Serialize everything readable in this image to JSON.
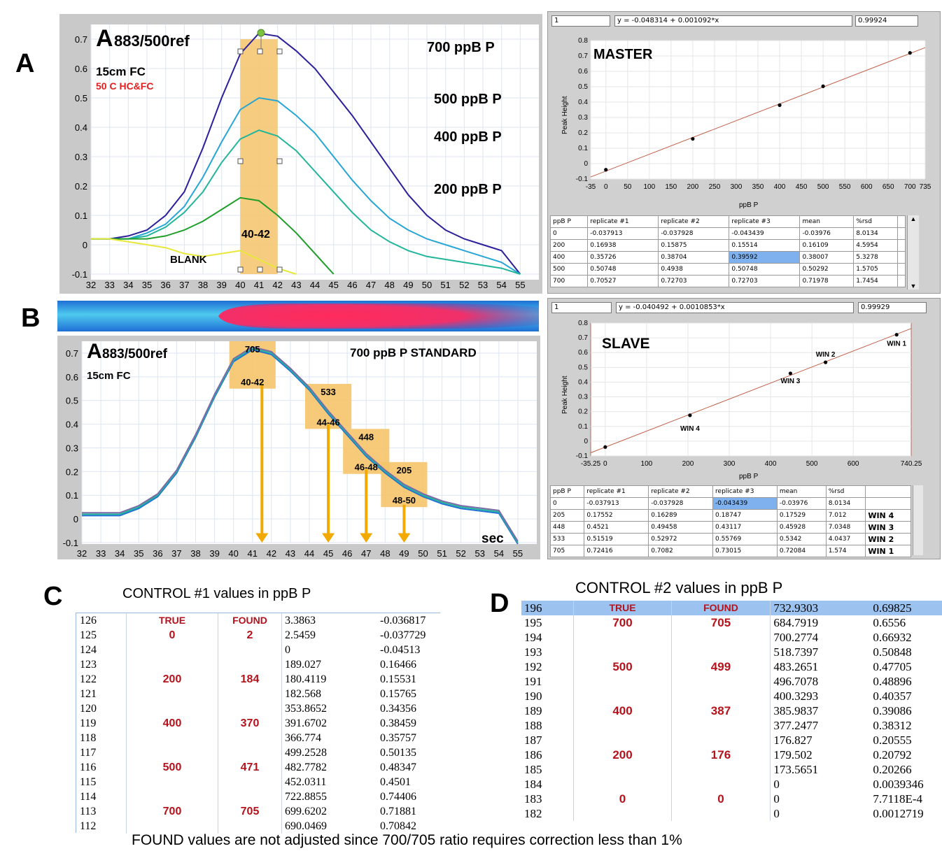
{
  "panels": {
    "a": "A",
    "b": "B",
    "c": "C",
    "d": "D"
  },
  "panelA": {
    "title_main": "A",
    "title_sub": "883/500ref",
    "fc": "15cm  FC",
    "temp": "50 C HC&FC",
    "window_label": "40-42",
    "blank_label": "BLANK",
    "curve_labels": [
      "700 ppB P",
      "500 ppB P",
      "400 ppB P",
      "200 ppB P"
    ],
    "colors": {
      "700": "#2b1f9c",
      "500": "#27a6d6",
      "400": "#22b59a",
      "200": "#1f9e2a",
      "blank": "#e8e83a",
      "window": "#f5c46a"
    }
  },
  "panelB": {
    "title_main": "A",
    "title_sub": "883/500ref",
    "fc": "15cm  FC",
    "standard": "700 ppB P STANDARD",
    "sec": "sec",
    "windows": [
      {
        "value": "705",
        "range": "40-42",
        "win": "WIN1"
      },
      {
        "value": "533",
        "range": "44-46",
        "win": "WIN2"
      },
      {
        "value": "448",
        "range": "46-48",
        "win": "WIN3"
      },
      {
        "value": "205",
        "range": "48-50",
        "win": "WIN4"
      }
    ]
  },
  "master": {
    "index": "1",
    "equation": "y = -0.048314 + 0.001092*x",
    "r": "0.99924",
    "title": "MASTER",
    "xlabel": "ppB P",
    "ylabel": "Peak Height",
    "headers": [
      "ppB P",
      "replicate #1",
      "replicate #2",
      "replicate #3",
      "mean",
      "%rsd"
    ],
    "rows": [
      [
        "0",
        "-0.037913",
        "-0.037928",
        "-0.043439",
        "-0.03976",
        "8.0134"
      ],
      [
        "200",
        "0.16938",
        "0.15875",
        "0.15514",
        "0.16109",
        "4.5954"
      ],
      [
        "400",
        "0.35726",
        "0.38704",
        "0.39592",
        "0.38007",
        "5.3278"
      ],
      [
        "500",
        "0.50748",
        "0.4938",
        "0.50748",
        "0.50292",
        "1.5705"
      ],
      [
        "700",
        "0.70527",
        "0.72703",
        "0.72703",
        "0.71978",
        "1.7454"
      ]
    ]
  },
  "slave": {
    "index": "1",
    "equation": "y = -0.040492 + 0.0010853*x",
    "r": "0.99929",
    "title": "SLAVE",
    "xlabel": "ppB P",
    "ylabel": "Peak Height",
    "point_labels": [
      "WIN 1",
      "WIN 2",
      "WIN 3",
      "WIN 4"
    ],
    "headers": [
      "ppB P",
      "replicate #1",
      "replicate #2",
      "replicate #3",
      "mean",
      "%rsd"
    ],
    "rows": [
      [
        "0",
        "-0.037913",
        "-0.037928",
        "-0.043439",
        "-0.03976",
        "8.0134",
        ""
      ],
      [
        "205",
        "0.17552",
        "0.16289",
        "0.18747",
        "0.17529",
        "7.012",
        "WIN 4"
      ],
      [
        "448",
        "0.4521",
        "0.49458",
        "0.43117",
        "0.45928",
        "7.0348",
        "WIN 3"
      ],
      [
        "533",
        "0.51519",
        "0.52972",
        "0.55769",
        "0.5342",
        "4.0437",
        "WIN 2"
      ],
      [
        "705",
        "0.72416",
        "0.7082",
        "0.73015",
        "0.72084",
        "1.574",
        "WIN 1"
      ]
    ]
  },
  "controlC": {
    "title": "CONTROL #1    values in ppB P",
    "true_label": "TRUE",
    "found_label": "FOUND",
    "rows": [
      [
        "126",
        "",
        "",
        "3.3863",
        "-0.036817"
      ],
      [
        "125",
        "0",
        "2",
        "2.5459",
        "-0.037729"
      ],
      [
        "124",
        "",
        "",
        "0",
        "-0.04513"
      ],
      [
        "123",
        "",
        "",
        "189.027",
        "0.16466"
      ],
      [
        "122",
        "200",
        "184",
        "180.4119",
        "0.15531"
      ],
      [
        "121",
        "",
        "",
        "182.568",
        "0.15765"
      ],
      [
        "120",
        "",
        "",
        "353.8652",
        "0.34356"
      ],
      [
        "119",
        "400",
        "370",
        "391.6702",
        "0.38459"
      ],
      [
        "118",
        "",
        "",
        "366.774",
        "0.35757"
      ],
      [
        "117",
        "",
        "",
        "499.2528",
        "0.50135"
      ],
      [
        "116",
        "500",
        "471",
        "482.7782",
        "0.48347"
      ],
      [
        "115",
        "",
        "",
        "452.0311",
        "0.4501"
      ],
      [
        "114",
        "",
        "",
        "722.8855",
        "0.74406"
      ],
      [
        "113",
        "700",
        "705",
        "699.6202",
        "0.71881"
      ],
      [
        "112",
        "",
        "",
        "690.0469",
        "0.70842"
      ]
    ]
  },
  "controlD": {
    "title": "CONTROL #2   values in ppB P",
    "true_label": "TRUE",
    "found_label": "FOUND",
    "rows": [
      [
        "196",
        "",
        "",
        "732.9303",
        "0.69825"
      ],
      [
        "195",
        "700",
        "705",
        "684.7919",
        "0.6556"
      ],
      [
        "194",
        "",
        "",
        "700.2774",
        "0.66932"
      ],
      [
        "193",
        "",
        "",
        "518.7397",
        "0.50848"
      ],
      [
        "192",
        "500",
        "499",
        "483.2651",
        "0.47705"
      ],
      [
        "191",
        "",
        "",
        "496.7078",
        "0.48896"
      ],
      [
        "190",
        "",
        "",
        "400.3293",
        "0.40357"
      ],
      [
        "189",
        "400",
        "387",
        "385.9837",
        "0.39086"
      ],
      [
        "188",
        "",
        "",
        "377.2477",
        "0.38312"
      ],
      [
        "187",
        "",
        "",
        "176.827",
        "0.20555"
      ],
      [
        "186",
        "200",
        "176",
        "179.502",
        "0.20792"
      ],
      [
        "185",
        "",
        "",
        "173.5651",
        "0.20266"
      ],
      [
        "184",
        "",
        "",
        "0",
        "0.0039346"
      ],
      [
        "183",
        "0",
        "0",
        "0",
        "7.7118E-4"
      ],
      [
        "182",
        "",
        "",
        "0",
        "0.0012719"
      ]
    ]
  },
  "footnote": "FOUND values are not adjusted since 700/705 ratio requires correction less than 1%",
  "chart_data": [
    {
      "type": "line",
      "title": "A883/500ref",
      "xlabel": "",
      "ylabel": "",
      "xlim": [
        32,
        56
      ],
      "ylim": [
        -0.1,
        0.75
      ],
      "x_ticks": [
        32,
        33,
        34,
        35,
        36,
        37,
        38,
        39,
        40,
        41,
        42,
        43,
        44,
        45,
        46,
        47,
        48,
        49,
        50,
        51,
        52,
        53,
        54,
        55
      ],
      "y_ticks": [
        -0.1,
        0,
        0.1,
        0.2,
        0.3,
        0.4,
        0.5,
        0.6,
        0.7
      ],
      "highlight_window": [
        40,
        42
      ],
      "series": [
        {
          "name": "700 ppB P",
          "x": [
            32,
            33,
            34,
            35,
            36,
            37,
            38,
            39,
            40,
            41,
            42,
            43,
            44,
            45,
            46,
            47,
            48,
            49,
            50,
            51,
            52,
            53,
            54,
            55
          ],
          "values": [
            0.02,
            0.02,
            0.03,
            0.05,
            0.1,
            0.18,
            0.33,
            0.5,
            0.65,
            0.72,
            0.71,
            0.66,
            0.6,
            0.52,
            0.44,
            0.35,
            0.26,
            0.17,
            0.1,
            0.05,
            0.02,
            0.0,
            -0.02,
            -0.1
          ]
        },
        {
          "name": "500 ppB P",
          "x": [
            32,
            33,
            34,
            35,
            36,
            37,
            38,
            39,
            40,
            41,
            42,
            43,
            44,
            45,
            46,
            47,
            48,
            49,
            50,
            51,
            52,
            53,
            54,
            55
          ],
          "values": [
            0.02,
            0.02,
            0.02,
            0.04,
            0.07,
            0.13,
            0.23,
            0.35,
            0.46,
            0.5,
            0.49,
            0.44,
            0.38,
            0.3,
            0.22,
            0.15,
            0.09,
            0.05,
            0.02,
            0.0,
            -0.02,
            -0.04,
            -0.06,
            -0.1
          ]
        },
        {
          "name": "400 ppB P",
          "x": [
            32,
            33,
            34,
            35,
            36,
            37,
            38,
            39,
            40,
            41,
            42,
            43,
            44,
            45,
            46,
            47,
            48,
            49,
            50,
            51,
            52,
            53,
            54,
            55
          ],
          "values": [
            0.02,
            0.02,
            0.02,
            0.03,
            0.06,
            0.11,
            0.18,
            0.28,
            0.36,
            0.39,
            0.37,
            0.32,
            0.25,
            0.18,
            0.11,
            0.05,
            0.01,
            -0.02,
            -0.04,
            -0.05,
            -0.06,
            -0.07,
            -0.08,
            -0.1
          ]
        },
        {
          "name": "200 ppB P",
          "x": [
            32,
            33,
            34,
            35,
            36,
            37,
            38,
            39,
            40,
            41,
            42,
            43,
            44,
            45
          ],
          "values": [
            0.02,
            0.02,
            0.02,
            0.02,
            0.03,
            0.05,
            0.08,
            0.12,
            0.16,
            0.15,
            0.1,
            0.04,
            -0.03,
            -0.1
          ]
        },
        {
          "name": "BLANK",
          "x": [
            32,
            33,
            34,
            35,
            36,
            37,
            38,
            39,
            40,
            41,
            42,
            43
          ],
          "values": [
            0.02,
            0.02,
            0.01,
            0.0,
            -0.01,
            -0.03,
            -0.04,
            -0.03,
            -0.02,
            -0.05,
            -0.08,
            -0.1
          ]
        }
      ]
    },
    {
      "type": "line",
      "title": "A883/500ref 700 ppB P STANDARD",
      "xlabel": "sec",
      "ylabel": "",
      "xlim": [
        32,
        56
      ],
      "ylim": [
        -0.1,
        0.75
      ],
      "x_ticks": [
        32,
        33,
        34,
        35,
        36,
        37,
        38,
        39,
        40,
        41,
        42,
        43,
        44,
        45,
        46,
        47,
        48,
        49,
        50,
        51,
        52,
        53,
        54,
        55
      ],
      "y_ticks": [
        -0.1,
        0,
        0.1,
        0.2,
        0.3,
        0.4,
        0.5,
        0.6,
        0.7
      ],
      "series": [
        {
          "name": "700 ppB P",
          "x": [
            32,
            33,
            34,
            35,
            36,
            37,
            38,
            39,
            40,
            41,
            42,
            43,
            44,
            45,
            46,
            47,
            48,
            49,
            50,
            51,
            52,
            53,
            54,
            55
          ],
          "values": [
            0.02,
            0.02,
            0.02,
            0.05,
            0.1,
            0.2,
            0.35,
            0.52,
            0.67,
            0.72,
            0.7,
            0.63,
            0.55,
            0.45,
            0.36,
            0.27,
            0.2,
            0.14,
            0.1,
            0.07,
            0.05,
            0.04,
            0.03,
            -0.1
          ]
        }
      ]
    },
    {
      "type": "scatter",
      "title": "MASTER",
      "xlabel": "ppB P",
      "ylabel": "Peak Height",
      "xlim": [
        -35,
        735
      ],
      "ylim": [
        -0.1,
        0.8
      ],
      "x_ticks": [
        -35,
        0,
        50,
        100,
        150,
        200,
        250,
        300,
        350,
        400,
        450,
        500,
        550,
        600,
        650,
        700,
        735
      ],
      "y_ticks": [
        -0.1,
        0,
        0.1,
        0.2,
        0.3,
        0.4,
        0.5,
        0.6,
        0.7,
        0.8
      ],
      "x": [
        0,
        200,
        400,
        500,
        700
      ],
      "values": [
        -0.03976,
        0.16109,
        0.38007,
        0.50292,
        0.71978
      ],
      "fit": {
        "intercept": -0.048314,
        "slope": 0.001092
      }
    },
    {
      "type": "scatter",
      "title": "SLAVE",
      "xlabel": "ppB P",
      "ylabel": "Peak Height",
      "xlim": [
        -35.25,
        740.25
      ],
      "ylim": [
        -0.1,
        0.8
      ],
      "x_ticks": [
        0,
        100,
        200,
        300,
        400,
        500,
        600
      ],
      "y_ticks": [
        -0.1,
        0,
        0.1,
        0.2,
        0.3,
        0.4,
        0.5,
        0.6,
        0.7,
        0.8
      ],
      "x": [
        0,
        205,
        448,
        533,
        705
      ],
      "values": [
        -0.03976,
        0.17529,
        0.45928,
        0.5342,
        0.72084
      ],
      "fit": {
        "intercept": -0.040492,
        "slope": 0.0010853
      }
    }
  ]
}
